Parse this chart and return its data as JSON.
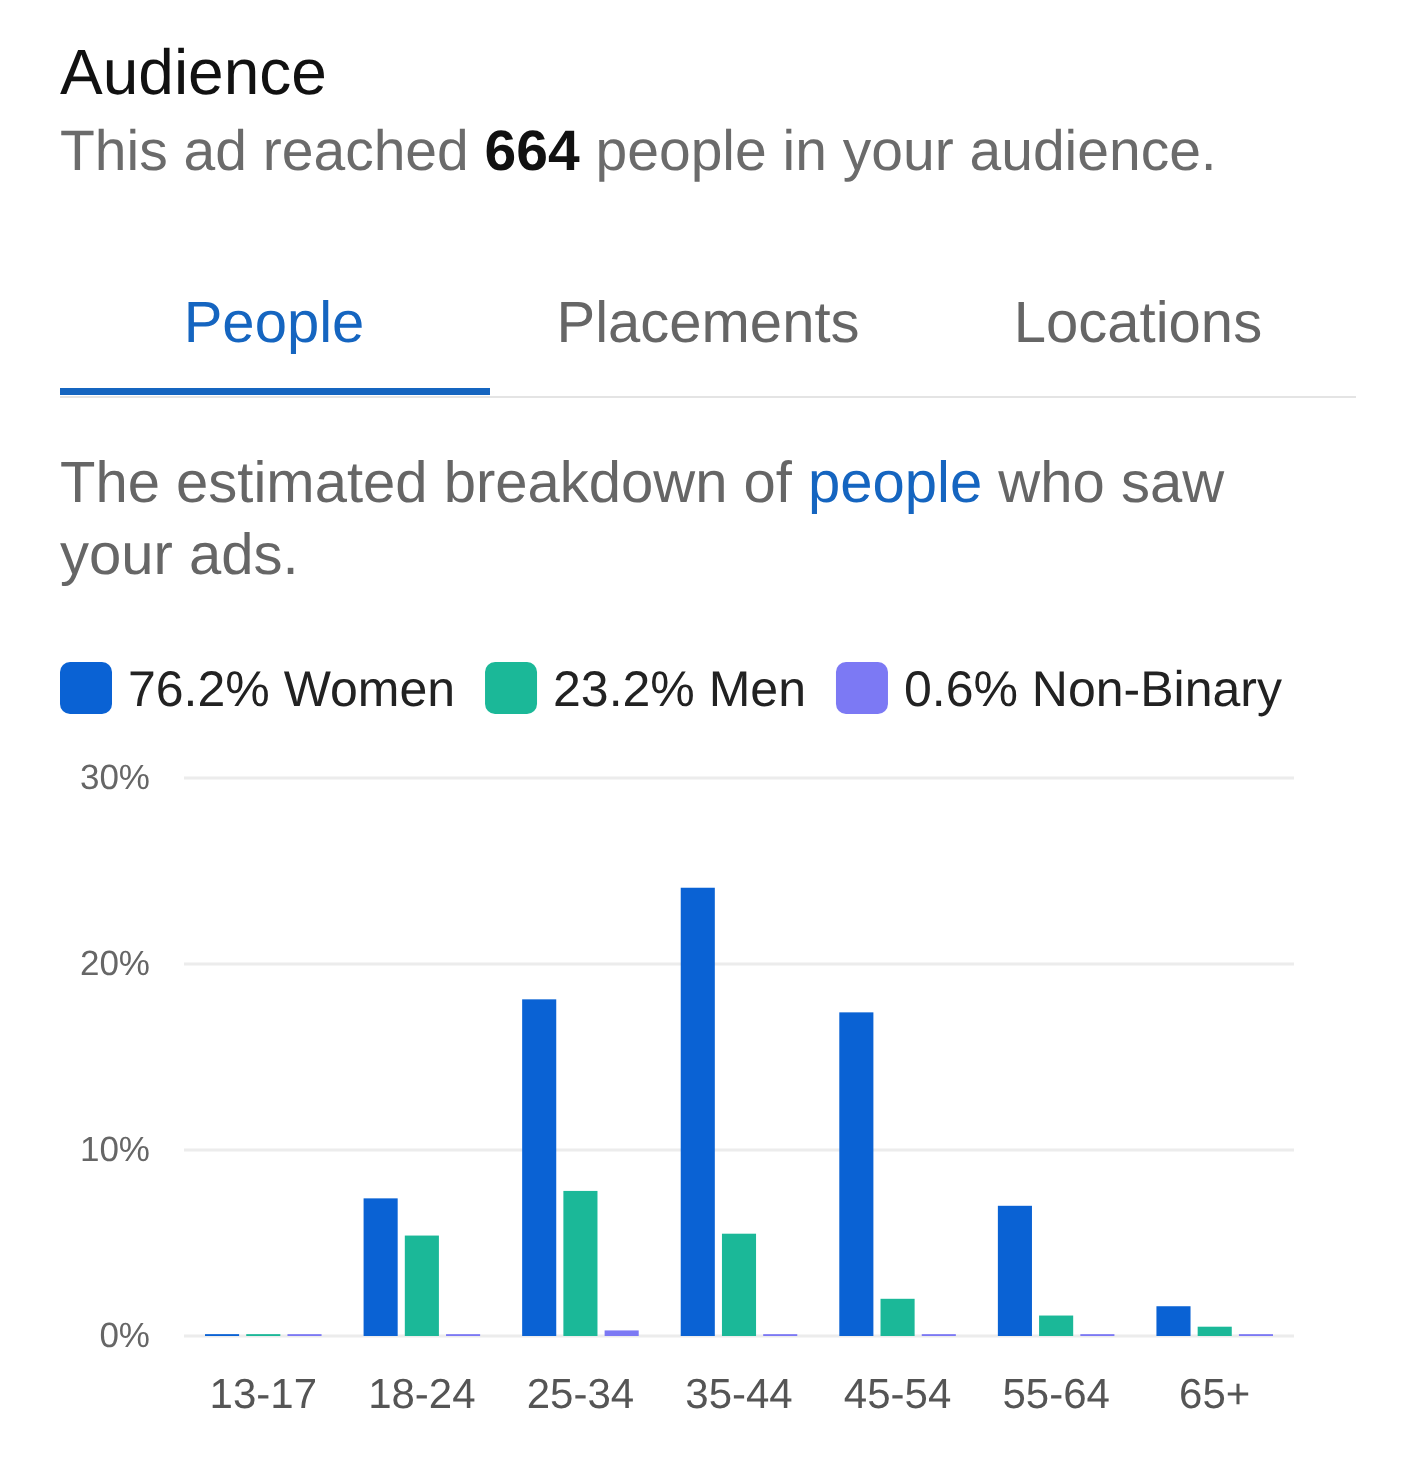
{
  "chart_data": {
    "type": "bar",
    "title": "Audience",
    "subtitle": "This ad reached 664 people in your audience.",
    "annotations": [
      "People",
      "Placements",
      "Locations",
      "The estimated breakdown of people who saw your ads."
    ],
    "categories": [
      "13-17",
      "18-24",
      "25-34",
      "35-44",
      "45-54",
      "55-64",
      "65+"
    ],
    "series": [
      {
        "name": "76.2% Women",
        "color": "#0a62d4",
        "values": [
          0.1,
          7.4,
          18.1,
          24.1,
          17.4,
          7.0,
          1.6
        ]
      },
      {
        "name": "23.2% Men",
        "color": "#1bb898",
        "values": [
          0.1,
          5.4,
          7.8,
          5.5,
          2.0,
          1.1,
          0.5
        ]
      },
      {
        "name": "0.6% Non-Binary",
        "color": "#7c79f4",
        "values": [
          0.1,
          0.1,
          0.3,
          0.1,
          0.1,
          0.1,
          0.1
        ]
      }
    ],
    "ylim": [
      0,
      30
    ],
    "yticks": [
      {
        "value": 0,
        "label": "0%"
      },
      {
        "value": 10,
        "label": "10%"
      },
      {
        "value": 20,
        "label": "20%"
      },
      {
        "value": 30,
        "label": "30%"
      }
    ],
    "grid": "y",
    "legend": "top left"
  }
}
